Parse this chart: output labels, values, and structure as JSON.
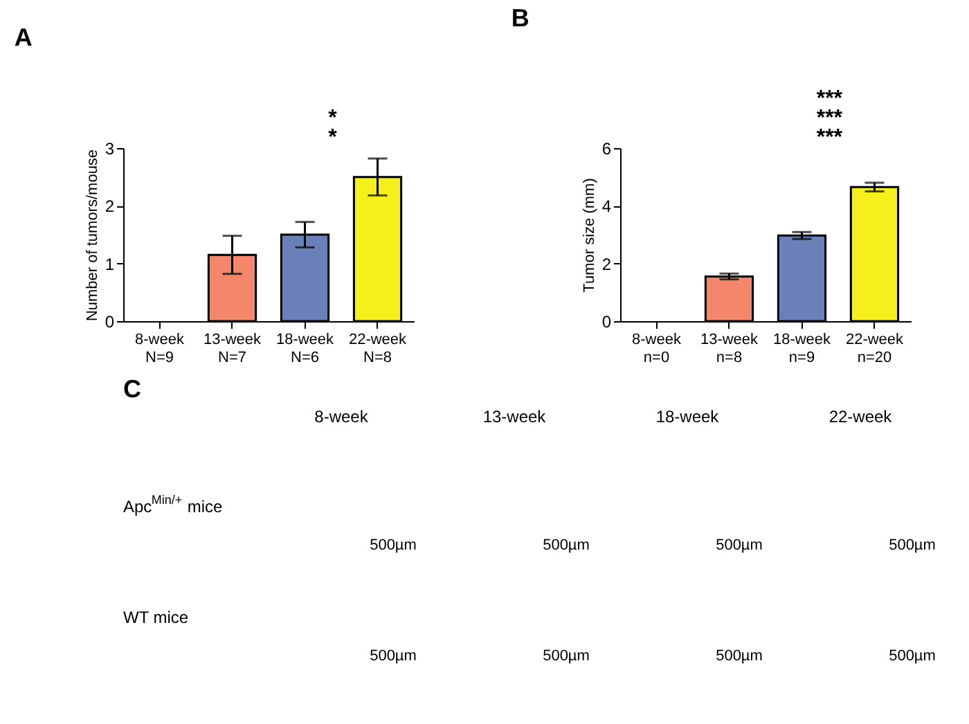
{
  "chart_data": [
    {
      "type": "bar",
      "title": "A",
      "ylabel": "Number of tumors/mouse",
      "categories": [
        "8-week\nN=9",
        "13-week\nN=7",
        "18-week\nN=6",
        "22-week\nN=8"
      ],
      "values": [
        null,
        1.15,
        1.5,
        2.5
      ],
      "errors": [
        null,
        0.33,
        0.22,
        0.32
      ],
      "colors": [
        "#f4876a",
        "#f4876a",
        "#6a80b8",
        "#f5ef1c"
      ],
      "ylim": [
        0,
        3
      ],
      "yticks": [
        0,
        1,
        2,
        3
      ],
      "grid": false,
      "annotations": [
        "*",
        "*"
      ]
    },
    {
      "type": "bar",
      "title": "B",
      "ylabel": "Tumor size (mm)",
      "categories": [
        "8-week\nn=0",
        "13-week\nn=8",
        "18-week\nn=9",
        "22-week\nn=20"
      ],
      "values": [
        null,
        1.55,
        2.97,
        4.65
      ],
      "errors": [
        null,
        0.1,
        0.12,
        0.15
      ],
      "colors": [
        "#f4876a",
        "#f4876a",
        "#6a80b8",
        "#f5ef1c"
      ],
      "ylim": [
        0,
        6
      ],
      "yticks": [
        0,
        2,
        4,
        6
      ],
      "grid": false,
      "annotations": [
        "***",
        "***",
        "***"
      ]
    },
    {
      "type": "other",
      "title": "C",
      "categories": [
        "8-week",
        "13-week",
        "18-week",
        "22-week"
      ],
      "y_categories": [
        "Apc$^{Min/+}$ mice",
        "WT mice"
      ],
      "annotations": [
        "500µm",
        "500µm",
        "500µm",
        "500µm",
        "500µm",
        "500µm",
        "500µm",
        "500µm"
      ]
    }
  ]
}
